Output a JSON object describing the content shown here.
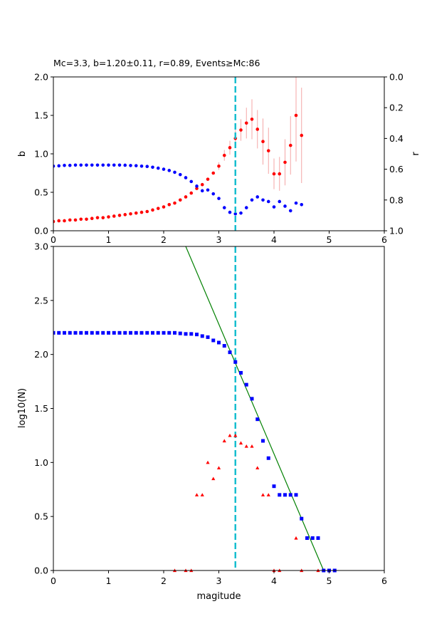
{
  "chart_data": [
    {
      "type": "scatter",
      "title": "Mc=3.3, b=1.20±0.11, r=0.89, Events≥Mc:86",
      "xlabel": "",
      "ylabel": "b",
      "ylabel_right": "r",
      "xlim": [
        0,
        6
      ],
      "ylim": [
        0,
        2.0
      ],
      "ylim_right": [
        1.0,
        0.0
      ],
      "x_ticks": [
        "0",
        "1",
        "2",
        "3",
        "4",
        "5",
        "6"
      ],
      "y_ticks": [
        "0.0",
        "0.5",
        "1.0",
        "1.5",
        "2.0"
      ],
      "y_ticks_right": [
        "0.0",
        "0.2",
        "0.4",
        "0.6",
        "0.8",
        "1.0"
      ],
      "mc_line": 3.3,
      "colors": {
        "b": "#ff0000",
        "r": "#0000ff",
        "errorbar": "#f4a6a6",
        "mc": "#17becf"
      },
      "series": [
        {
          "axis": "left",
          "x": [
            0.0,
            0.1,
            0.2,
            0.3,
            0.4,
            0.5,
            0.6,
            0.7,
            0.8,
            0.9,
            1.0,
            1.1,
            1.2,
            1.3,
            1.4,
            1.5,
            1.6,
            1.7,
            1.8,
            1.9,
            2.0,
            2.1,
            2.2,
            2.3,
            2.4,
            2.5,
            2.6,
            2.7,
            2.8,
            2.9,
            3.0,
            3.1,
            3.2,
            3.3,
            3.4,
            3.5,
            3.6,
            3.7,
            3.8,
            3.9,
            4.0,
            4.1,
            4.2,
            4.3,
            4.4,
            4.5
          ],
          "y": [
            0.12,
            0.13,
            0.13,
            0.14,
            0.14,
            0.15,
            0.15,
            0.16,
            0.17,
            0.17,
            0.18,
            0.19,
            0.2,
            0.21,
            0.22,
            0.23,
            0.24,
            0.25,
            0.27,
            0.29,
            0.31,
            0.34,
            0.36,
            0.4,
            0.44,
            0.49,
            0.55,
            0.6,
            0.67,
            0.75,
            0.84,
            0.98,
            1.08,
            1.2,
            1.31,
            1.4,
            1.45,
            1.32,
            1.16,
            1.04,
            0.74,
            0.74,
            0.89,
            1.11,
            1.5,
            1.24
          ],
          "error": [
            0.01,
            0.01,
            0.01,
            0.01,
            0.01,
            0.01,
            0.01,
            0.01,
            0.01,
            0.01,
            0.01,
            0.01,
            0.01,
            0.01,
            0.01,
            0.01,
            0.01,
            0.01,
            0.01,
            0.01,
            0.01,
            0.01,
            0.01,
            0.02,
            0.02,
            0.02,
            0.02,
            0.03,
            0.03,
            0.04,
            0.05,
            0.07,
            0.09,
            0.11,
            0.14,
            0.2,
            0.26,
            0.25,
            0.3,
            0.3,
            0.2,
            0.22,
            0.3,
            0.38,
            0.6,
            0.62
          ]
        },
        {
          "axis": "right",
          "x": [
            0.0,
            0.1,
            0.2,
            0.3,
            0.4,
            0.5,
            0.6,
            0.7,
            0.8,
            0.9,
            1.0,
            1.1,
            1.2,
            1.3,
            1.4,
            1.5,
            1.6,
            1.7,
            1.8,
            1.9,
            2.0,
            2.1,
            2.2,
            2.3,
            2.4,
            2.5,
            2.6,
            2.7,
            2.8,
            2.9,
            3.0,
            3.1,
            3.2,
            3.3,
            3.4,
            3.5,
            3.6,
            3.7,
            3.8,
            3.9,
            4.0,
            4.1,
            4.2,
            4.3,
            4.4,
            4.5
          ],
          "y": [
            0.58,
            0.578,
            0.575,
            0.575,
            0.573,
            0.573,
            0.573,
            0.573,
            0.573,
            0.573,
            0.573,
            0.573,
            0.573,
            0.574,
            0.576,
            0.577,
            0.58,
            0.582,
            0.587,
            0.593,
            0.6,
            0.608,
            0.62,
            0.635,
            0.655,
            0.68,
            0.71,
            0.74,
            0.735,
            0.76,
            0.79,
            0.85,
            0.88,
            0.89,
            0.885,
            0.85,
            0.8,
            0.78,
            0.8,
            0.81,
            0.845,
            0.81,
            0.84,
            0.87,
            0.82,
            0.83
          ]
        }
      ]
    },
    {
      "type": "scatter",
      "title": "",
      "xlabel": "magitude",
      "ylabel": "log10(N)",
      "xlim": [
        0,
        6
      ],
      "ylim": [
        0,
        3.0
      ],
      "x_ticks": [
        "0",
        "1",
        "2",
        "3",
        "4",
        "5",
        "6"
      ],
      "y_ticks": [
        "0.0",
        "0.5",
        "1.0",
        "1.5",
        "2.0",
        "2.5",
        "3.0"
      ],
      "mc_line": 3.3,
      "fit_line": {
        "x": [
          2.3,
          4.9
        ],
        "y": [
          3.12,
          0.0
        ]
      },
      "colors": {
        "cumulative": "#0000ff",
        "noncumulative": "#ff0000",
        "fit": "#008000",
        "mc": "#17becf"
      },
      "series": [
        {
          "marker": "square",
          "x": [
            0.0,
            0.1,
            0.2,
            0.3,
            0.4,
            0.5,
            0.6,
            0.7,
            0.8,
            0.9,
            1.0,
            1.1,
            1.2,
            1.3,
            1.4,
            1.5,
            1.6,
            1.7,
            1.8,
            1.9,
            2.0,
            2.1,
            2.2,
            2.3,
            2.4,
            2.5,
            2.6,
            2.7,
            2.8,
            2.9,
            3.0,
            3.1,
            3.2,
            3.3,
            3.4,
            3.5,
            3.6,
            3.7,
            3.8,
            3.9,
            4.0,
            4.1,
            4.2,
            4.3,
            4.4,
            4.5,
            4.6,
            4.7,
            4.8,
            4.9,
            5.0,
            5.1
          ],
          "y": [
            2.2,
            2.2,
            2.2,
            2.2,
            2.2,
            2.2,
            2.2,
            2.2,
            2.2,
            2.2,
            2.2,
            2.2,
            2.2,
            2.2,
            2.2,
            2.2,
            2.2,
            2.2,
            2.2,
            2.2,
            2.2,
            2.2,
            2.2,
            2.195,
            2.19,
            2.19,
            2.185,
            2.17,
            2.16,
            2.13,
            2.11,
            2.08,
            2.02,
            1.93,
            1.83,
            1.72,
            1.59,
            1.4,
            1.2,
            1.04,
            0.78,
            0.7,
            0.7,
            0.7,
            0.7,
            0.48,
            0.3,
            0.3,
            0.3,
            0.0,
            0.0,
            0.0
          ]
        },
        {
          "marker": "triangle",
          "x": [
            2.2,
            2.4,
            2.5,
            2.6,
            2.7,
            2.8,
            2.9,
            3.0,
            3.1,
            3.2,
            3.3,
            3.4,
            3.5,
            3.6,
            3.7,
            3.8,
            3.9,
            4.0,
            4.1,
            4.4,
            4.5,
            4.8
          ],
          "y": [
            0.0,
            0.0,
            0.0,
            0.7,
            0.7,
            1.0,
            0.85,
            0.95,
            1.2,
            1.25,
            1.25,
            1.18,
            1.15,
            1.15,
            0.95,
            0.7,
            0.7,
            0.0,
            0.0,
            0.3,
            0.0,
            0.0
          ]
        }
      ]
    }
  ]
}
